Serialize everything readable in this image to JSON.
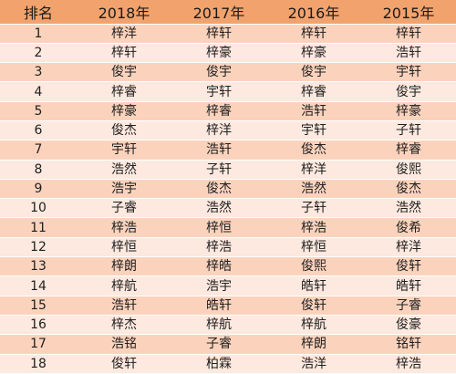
{
  "table": {
    "headers": [
      "排名",
      "2018年",
      "2017年",
      "2016年",
      "2015年"
    ],
    "rows": [
      {
        "rank": "1",
        "y2018": "梓洋",
        "y2017": "梓轩",
        "y2016": "梓轩",
        "y2015": "梓轩"
      },
      {
        "rank": "2",
        "y2018": "梓轩",
        "y2017": "梓豪",
        "y2016": "梓豪",
        "y2015": "浩轩"
      },
      {
        "rank": "3",
        "y2018": "俊宇",
        "y2017": "俊宇",
        "y2016": "俊宇",
        "y2015": "宇轩"
      },
      {
        "rank": "4",
        "y2018": "梓睿",
        "y2017": "宇轩",
        "y2016": "梓睿",
        "y2015": "俊宇"
      },
      {
        "rank": "5",
        "y2018": "梓豪",
        "y2017": "梓睿",
        "y2016": "浩轩",
        "y2015": "梓豪"
      },
      {
        "rank": "6",
        "y2018": "俊杰",
        "y2017": "梓洋",
        "y2016": "宇轩",
        "y2015": "子轩"
      },
      {
        "rank": "7",
        "y2018": "宇轩",
        "y2017": "浩轩",
        "y2016": "俊杰",
        "y2015": "梓睿"
      },
      {
        "rank": "8",
        "y2018": "浩然",
        "y2017": "子轩",
        "y2016": "梓洋",
        "y2015": "俊熙"
      },
      {
        "rank": "9",
        "y2018": "浩宇",
        "y2017": "俊杰",
        "y2016": "浩然",
        "y2015": "俊杰"
      },
      {
        "rank": "10",
        "y2018": "子睿",
        "y2017": "浩然",
        "y2016": "子轩",
        "y2015": "浩然"
      },
      {
        "rank": "11",
        "y2018": "梓浩",
        "y2017": "梓恒",
        "y2016": "梓浩",
        "y2015": "俊希"
      },
      {
        "rank": "12",
        "y2018": "梓恒",
        "y2017": "梓浩",
        "y2016": "梓恒",
        "y2015": "梓洋"
      },
      {
        "rank": "13",
        "y2018": "梓朗",
        "y2017": "梓皓",
        "y2016": "俊熙",
        "y2015": "俊轩"
      },
      {
        "rank": "14",
        "y2018": "梓航",
        "y2017": "浩宇",
        "y2016": "皓轩",
        "y2015": "皓轩"
      },
      {
        "rank": "15",
        "y2018": "浩轩",
        "y2017": "皓轩",
        "y2016": "俊轩",
        "y2015": "子睿"
      },
      {
        "rank": "16",
        "y2018": "梓杰",
        "y2017": "梓航",
        "y2016": "梓航",
        "y2015": "俊豪"
      },
      {
        "rank": "17",
        "y2018": "浩铭",
        "y2017": "子睿",
        "y2016": "梓朗",
        "y2015": "铭轩"
      },
      {
        "rank": "18",
        "y2018": "俊轩",
        "y2017": "柏霖",
        "y2016": "浩洋",
        "y2015": "梓浩"
      }
    ]
  }
}
